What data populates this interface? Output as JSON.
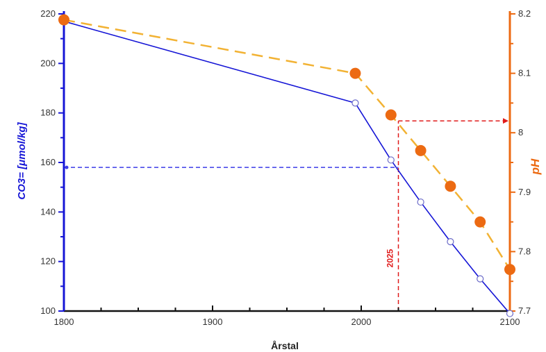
{
  "chart_data": {
    "type": "line",
    "xlabel": "Årstal",
    "xlim": [
      1800,
      2100
    ],
    "x_ticks": [
      1800,
      1900,
      2000,
      2100
    ],
    "colors": {
      "co3": "#1515d6",
      "ph": "#ec6a12",
      "ph_dash": "#f2b233",
      "guide": "#e01b1b",
      "guide_left": "#3a3ae8"
    },
    "left_axis": {
      "label": "CO3= [μmol/kg]",
      "ylim": [
        100,
        220
      ],
      "ticks": [
        100,
        120,
        140,
        160,
        180,
        200,
        220
      ]
    },
    "right_axis": {
      "label": "pH",
      "ylim": [
        7.7,
        8.2
      ],
      "ticks": [
        7.7,
        7.8,
        7.9,
        8,
        8.1,
        8.2
      ],
      "tick_labels": [
        "7.7",
        "7.8",
        "7.9",
        "8",
        "8.1",
        "8.2"
      ]
    },
    "series": [
      {
        "axis": "left",
        "style": "line-open-markers",
        "x": [
          1800,
          1996,
          2020,
          2040,
          2060,
          2080,
          2100
        ],
        "y": [
          217,
          184,
          161,
          144,
          128,
          113,
          99
        ]
      },
      {
        "axis": "right",
        "style": "dashed-filled-markers",
        "x": [
          1800,
          1996,
          2020,
          2040,
          2060,
          2080,
          2100
        ],
        "y": [
          8.19,
          8.1,
          8.03,
          7.97,
          7.91,
          7.85,
          7.77
        ]
      }
    ],
    "annotations": [
      {
        "text": "2025",
        "x": 2025
      }
    ],
    "guides": {
      "year": 2025,
      "co3_value": 158,
      "ph_value": 8.02
    }
  }
}
